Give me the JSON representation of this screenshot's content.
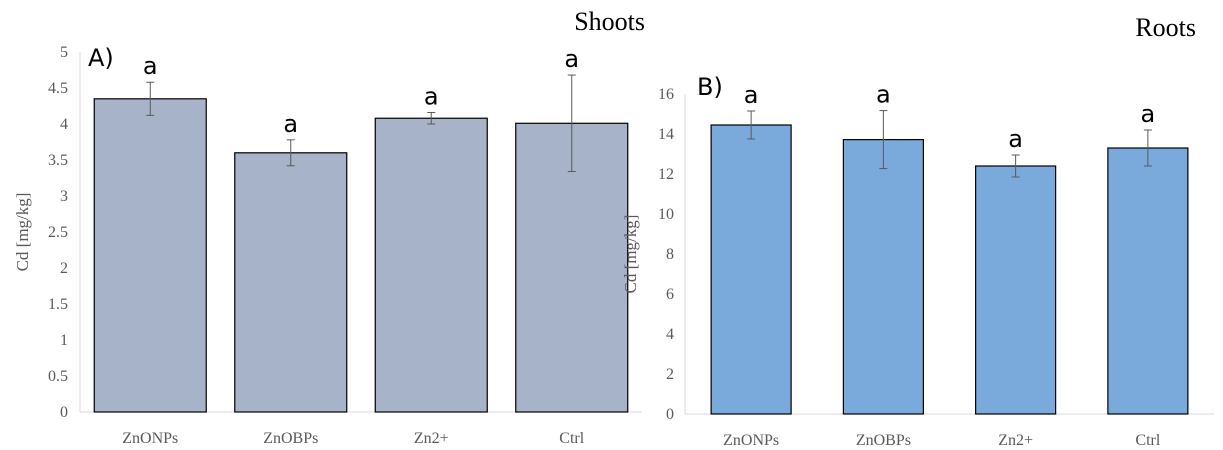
{
  "chart_data": [
    {
      "type": "bar",
      "panel_label": "A)",
      "title": "Shoots",
      "ylabel": "Cd [mg/kg]",
      "xlabel": "",
      "categories": [
        "ZnONPs",
        "ZnOBPs",
        "Zn2+",
        "Ctrl"
      ],
      "values": [
        4.35,
        3.6,
        4.08,
        4.01
      ],
      "errors": [
        0.23,
        0.18,
        0.08,
        0.67
      ],
      "significance": [
        "a",
        "a",
        "a",
        "a"
      ],
      "ylim": [
        0,
        5
      ],
      "yticks": [
        "0",
        "0.5",
        "1",
        "1.5",
        "2",
        "2.5",
        "3",
        "3.5",
        "4",
        "4.5",
        "5"
      ],
      "bar_color": "#a6b3c9",
      "grid": false
    },
    {
      "type": "bar",
      "panel_label": "B)",
      "title": "Roots",
      "ylabel": "Cd [mg/kg]",
      "xlabel": "",
      "categories": [
        "ZnONPs",
        "ZnOBPs",
        "Zn2+",
        "Ctrl"
      ],
      "values": [
        14.45,
        13.72,
        12.4,
        13.3
      ],
      "errors": [
        0.7,
        1.45,
        0.55,
        0.9
      ],
      "significance": [
        "a",
        "a",
        "a",
        "a"
      ],
      "ylim": [
        0,
        16
      ],
      "yticks": [
        "0",
        "2",
        "4",
        "6",
        "8",
        "10",
        "12",
        "14",
        "16"
      ],
      "bar_color": "#7aaadc",
      "grid": false
    }
  ]
}
